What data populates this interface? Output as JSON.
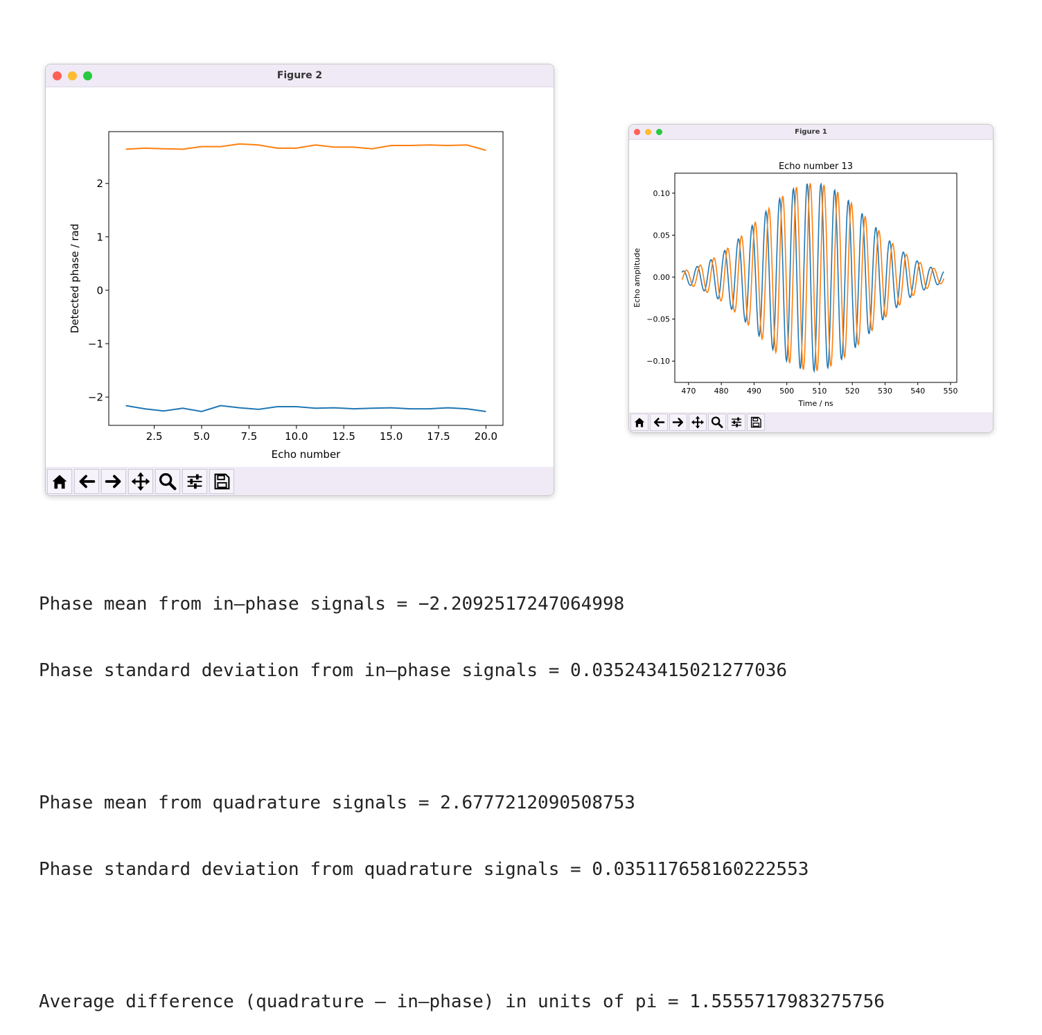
{
  "figure2": {
    "title": "Figure 2",
    "colors": {
      "blue": "#1f77b4",
      "orange": "#ff7f0e"
    },
    "chart_data": {
      "type": "line",
      "title": "",
      "xlabel": "Echo number",
      "ylabel": "Detected phase / rad",
      "xlim": [
        0.1,
        20.9
      ],
      "ylim": [
        -2.53,
        2.97
      ],
      "xticks": [
        2.5,
        5.0,
        7.5,
        10.0,
        12.5,
        15.0,
        17.5,
        20.0
      ],
      "xtick_labels": [
        "2.5",
        "5.0",
        "7.5",
        "10.0",
        "12.5",
        "15.0",
        "17.5",
        "20.0"
      ],
      "yticks": [
        -2,
        -1,
        0,
        1,
        2
      ],
      "ytick_labels": [
        "−2",
        "−1",
        "0",
        "1",
        "2"
      ],
      "series": [
        {
          "name": "in-phase",
          "color": "#1f77b4",
          "x": [
            1,
            2,
            3,
            4,
            5,
            6,
            7,
            8,
            9,
            10,
            11,
            12,
            13,
            14,
            15,
            16,
            17,
            18,
            19,
            20
          ],
          "y": [
            -2.16,
            -2.22,
            -2.26,
            -2.21,
            -2.27,
            -2.16,
            -2.2,
            -2.23,
            -2.18,
            -2.18,
            -2.21,
            -2.2,
            -2.22,
            -2.21,
            -2.2,
            -2.22,
            -2.22,
            -2.2,
            -2.22,
            -2.27
          ]
        },
        {
          "name": "quadrature",
          "color": "#ff7f0e",
          "x": [
            1,
            2,
            3,
            4,
            5,
            6,
            7,
            8,
            9,
            10,
            11,
            12,
            13,
            14,
            15,
            16,
            17,
            18,
            19,
            20
          ],
          "y": [
            2.64,
            2.66,
            2.65,
            2.64,
            2.69,
            2.69,
            2.74,
            2.72,
            2.66,
            2.66,
            2.72,
            2.68,
            2.68,
            2.65,
            2.71,
            2.71,
            2.72,
            2.71,
            2.72,
            2.62
          ]
        }
      ]
    }
  },
  "figure1": {
    "title": "Figure 1",
    "chart_data": {
      "type": "line",
      "title": "Echo number 13",
      "xlabel": "Time / ns",
      "ylabel": "Echo amplitude",
      "xlim": [
        465.8,
        551.9
      ],
      "ylim": [
        -0.1254,
        0.1238
      ],
      "xticks": [
        470,
        480,
        490,
        500,
        510,
        520,
        530,
        540,
        550
      ],
      "xtick_labels": [
        "470",
        "480",
        "490",
        "500",
        "510",
        "520",
        "530",
        "540",
        "550"
      ],
      "yticks": [
        -0.1,
        -0.05,
        0.0,
        0.05,
        0.1
      ],
      "ytick_labels": [
        "−0.10",
        "−0.05",
        "0.00",
        "0.05",
        "0.10"
      ],
      "signal": {
        "t_start": 468,
        "t_end": 548,
        "center": 508,
        "period": 4.2,
        "peak_amplitude": 0.112,
        "width": 24,
        "phase_offset": -1.4
      },
      "series": [
        {
          "name": "in-phase",
          "color": "#1f77b4",
          "phase": -2.21
        },
        {
          "name": "quadrature",
          "color": "#ff7f0e",
          "phase": 2.68
        }
      ]
    }
  },
  "toolbar_buttons": [
    {
      "name": "home-button",
      "icon": "home-icon"
    },
    {
      "name": "back-button",
      "icon": "arrow-left-icon"
    },
    {
      "name": "forward-button",
      "icon": "arrow-right-icon"
    },
    {
      "name": "pan-button",
      "icon": "move-icon"
    },
    {
      "name": "zoom-button",
      "icon": "magnifier-icon"
    },
    {
      "name": "configure-subplots-button",
      "icon": "sliders-icon"
    },
    {
      "name": "save-button",
      "icon": "floppy-icon"
    }
  ],
  "console": {
    "line1": "Phase mean from in–phase signals = −2.2092517247064998",
    "line2": "Phase standard deviation from in–phase signals = 0.035243415021277036",
    "line3": "Phase mean from quadrature signals = 2.6777212090508753",
    "line4": "Phase standard deviation from quadrature signals = 0.035117658160222553",
    "line5": "Average difference (quadrature – in–phase) in units of pi = 1.5555717983275756"
  }
}
